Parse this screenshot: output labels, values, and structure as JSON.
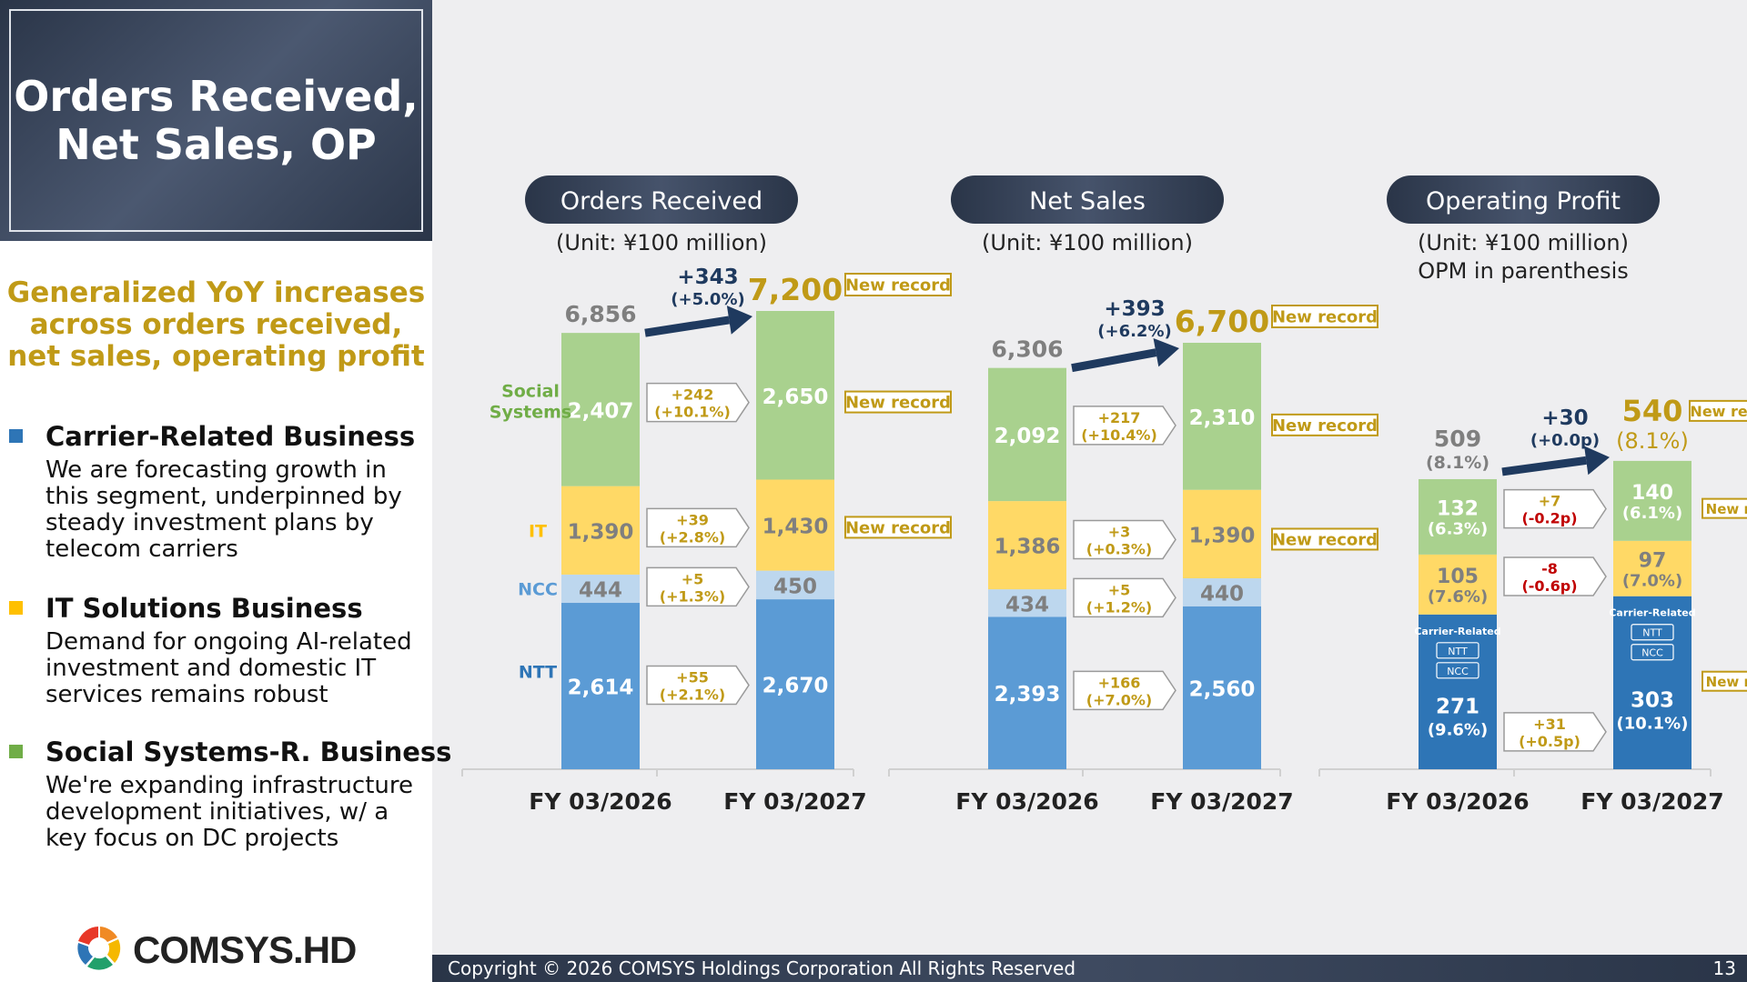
{
  "title": {
    "line1": "Orders Received,",
    "line2": "Net Sales, OP"
  },
  "headline": {
    "line1": "Generalized YoY increases",
    "line2": "across orders received,",
    "line3": "net sales, operating profit"
  },
  "businesses": [
    {
      "name": "Carrier-Related Business",
      "color": "#2e75b6",
      "desc": [
        "We are forecasting growth in",
        "this segment, underpinned by",
        "steady investment plans by",
        "telecom carriers"
      ]
    },
    {
      "name": "IT Solutions Business",
      "color": "#ffc000",
      "desc": [
        "Demand for ongoing AI-related",
        "investment and domestic IT",
        "services remains robust"
      ]
    },
    {
      "name": "Social Systems-R. Business",
      "color": "#70ad47",
      "desc": [
        "We're expanding infrastructure",
        "development initiatives, w/ a",
        "key focus on DC projects"
      ]
    }
  ],
  "logo_text": "COMSYS.HD",
  "footer": {
    "copyright": "Copyright © 2026 COMSYS Holdings Corporation All Rights Reserved",
    "page": "13"
  },
  "colors": {
    "social": "#a9d18e",
    "it": "#ffd966",
    "ncc": "#bdd7ee",
    "ntt": "#5b9bd5",
    "carrier": "#2e75b6",
    "gold": "#c09a17",
    "navy": "#1f3a5f",
    "gray": "#7f7f7f",
    "red": "#c00000"
  },
  "labels": {
    "new_record": "New record",
    "carrier_related": "Carrier-Related",
    "ntt": "NTT",
    "ncc": "NCC"
  },
  "chart_data": [
    {
      "type": "bar",
      "stacked": true,
      "title": "Orders Received",
      "unit": "(Unit: ¥100 million)",
      "categories": [
        "FY 03/2026",
        "FY 03/2027"
      ],
      "series": [
        {
          "name": "NTT",
          "values": [
            2614,
            2670
          ],
          "labels": [
            "2,614",
            "2,670"
          ],
          "change": "+55",
          "change_pct": "(+2.1%)"
        },
        {
          "name": "NCC",
          "values": [
            444,
            450
          ],
          "labels": [
            "444",
            "450"
          ],
          "change": "+5",
          "change_pct": "(+1.3%)"
        },
        {
          "name": "IT",
          "values": [
            1390,
            1430
          ],
          "labels": [
            "1,390",
            "1,430"
          ],
          "change": "+39",
          "change_pct": "(+2.8%)",
          "new_record": true
        },
        {
          "name": "Social Systems",
          "values": [
            2407,
            2650
          ],
          "labels": [
            "2,407",
            "2,650"
          ],
          "change": "+242",
          "change_pct": "(+10.1%)",
          "new_record": true
        }
      ],
      "series_labels_shown": true,
      "totals": [
        "6,856",
        "7,200"
      ],
      "total_change": "+343",
      "total_change_pct": "(+5.0%)",
      "total_new_record": true
    },
    {
      "type": "bar",
      "stacked": true,
      "title": "Net Sales",
      "unit": "(Unit: ¥100 million)",
      "categories": [
        "FY 03/2026",
        "FY 03/2027"
      ],
      "series": [
        {
          "name": "NTT",
          "values": [
            2393,
            2560
          ],
          "labels": [
            "2,393",
            "2,560"
          ],
          "change": "+166",
          "change_pct": "(+7.0%)"
        },
        {
          "name": "NCC",
          "values": [
            434,
            440
          ],
          "labels": [
            "434",
            "440"
          ],
          "change": "+5",
          "change_pct": "(+1.2%)"
        },
        {
          "name": "IT",
          "values": [
            1386,
            1390
          ],
          "labels": [
            "1,386",
            "1,390"
          ],
          "change": "+3",
          "change_pct": "(+0.3%)",
          "new_record": true
        },
        {
          "name": "Social Systems",
          "values": [
            2092,
            2310
          ],
          "labels": [
            "2,092",
            "2,310"
          ],
          "change": "+217",
          "change_pct": "(+10.4%)",
          "new_record": true
        }
      ],
      "totals": [
        "6,306",
        "6,700"
      ],
      "total_change": "+393",
      "total_change_pct": "(+6.2%)",
      "total_new_record": true
    },
    {
      "type": "bar",
      "stacked": true,
      "title": "Operating Profit",
      "unit": "(Unit: ¥100 million)",
      "unit2": "OPM in parenthesis",
      "categories": [
        "FY 03/2026",
        "FY 03/2027"
      ],
      "series": [
        {
          "name": "Carrier-Related",
          "values": [
            271,
            303
          ],
          "labels": [
            "271",
            "303"
          ],
          "opm": [
            "(9.6%)",
            "(10.1%)"
          ],
          "change": "+31",
          "change_pct": "(+0.5p)",
          "new_record": true
        },
        {
          "name": "IT",
          "values": [
            105,
            97
          ],
          "labels": [
            "105",
            "97"
          ],
          "opm": [
            "(7.6%)",
            "(7.0%)"
          ],
          "change": "-8",
          "change_pct": "(-0.6p)"
        },
        {
          "name": "Social Systems",
          "values": [
            132,
            140
          ],
          "labels": [
            "132",
            "140"
          ],
          "opm": [
            "(6.3%)",
            "(6.1%)"
          ],
          "change": "+7",
          "change_pct": "(-0.2p)",
          "new_record": true
        }
      ],
      "totals": [
        "509",
        "540"
      ],
      "total_opm": [
        "(8.1%)",
        "(8.1%)"
      ],
      "total_change": "+30",
      "total_change_pct": "(+0.0p)",
      "total_new_record": true
    }
  ]
}
